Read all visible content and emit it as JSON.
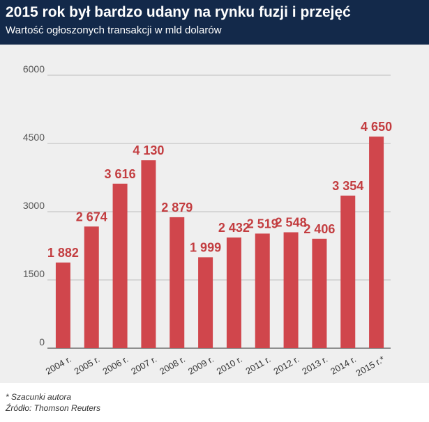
{
  "header": {
    "title": "2015 rok był bardzo udany na rynku fuzji i przejęć",
    "subtitle": "Wartość ogłoszonych transakcji w mld dolarów"
  },
  "footer": {
    "note": "* Szacunki autora",
    "source": "Źródło: Thomson Reuters"
  },
  "colors": {
    "header_bg": "#13294a",
    "bar": "#d0464c",
    "label": "#c33d40",
    "background": "#efefef"
  },
  "chart_data": {
    "type": "bar",
    "categories": [
      "2004 r.",
      "2005 r.",
      "2006 r.",
      "2007 r.",
      "2008 r.",
      "2009 r.",
      "2010 r.",
      "2011 r.",
      "2012 r.",
      "2013 r.",
      "2014 r.",
      "2015 r.*"
    ],
    "values": [
      1882,
      2674,
      3616,
      4130,
      2879,
      1999,
      2432,
      2519,
      2548,
      2406,
      3354,
      4650
    ],
    "value_labels": [
      "1 882",
      "2 674",
      "3 616",
      "4 130",
      "2 879",
      "1 999",
      "2 432",
      "2 519",
      "2 548",
      "2 406",
      "3 354",
      "4 650"
    ],
    "yticks": [
      0,
      1500,
      3000,
      4500,
      6000
    ],
    "ylim": [
      0,
      6000
    ],
    "grid": true,
    "title": "2015 rok był bardzo udany na rynku fuzji i przejęć",
    "subtitle": "Wartość ogłoszonych transakcji w mld dolarów",
    "xlabel": "",
    "ylabel": ""
  }
}
